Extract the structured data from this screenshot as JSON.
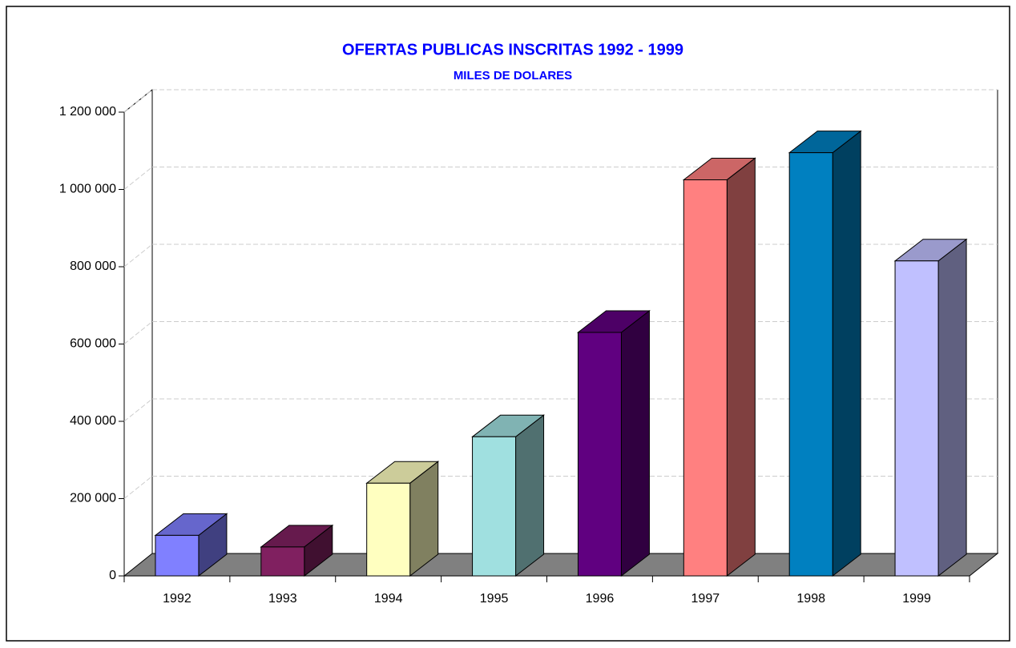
{
  "chart_data": {
    "type": "bar3d",
    "title": "OFERTAS PUBLICAS INSCRITAS 1992 - 1999",
    "subtitle": "MILES DE DOLARES",
    "categories": [
      "1992",
      "1993",
      "1994",
      "1995",
      "1996",
      "1997",
      "1998",
      "1999"
    ],
    "values": [
      105000,
      75000,
      240000,
      360000,
      630000,
      1025000,
      1095000,
      815000
    ],
    "colors": [
      "#8080ff",
      "#802060",
      "#ffffc0",
      "#a0e0e0",
      "#600080",
      "#ff8080",
      "#0080c0",
      "#c0c0ff"
    ],
    "ylim": [
      0,
      1200000
    ],
    "yticks": [
      0,
      {
        "value": 200000,
        "label": "200 000"
      },
      {
        "value": 400000,
        "label": "400 000"
      },
      {
        "value": 600000,
        "label": "600 000"
      },
      {
        "value": 800000,
        "label": "800 000"
      },
      {
        "value": 1000000,
        "label": "1 000 000"
      },
      {
        "value": 1200000,
        "label": "1 200 000"
      }
    ],
    "grid": true,
    "title_color": "#0000ff"
  }
}
